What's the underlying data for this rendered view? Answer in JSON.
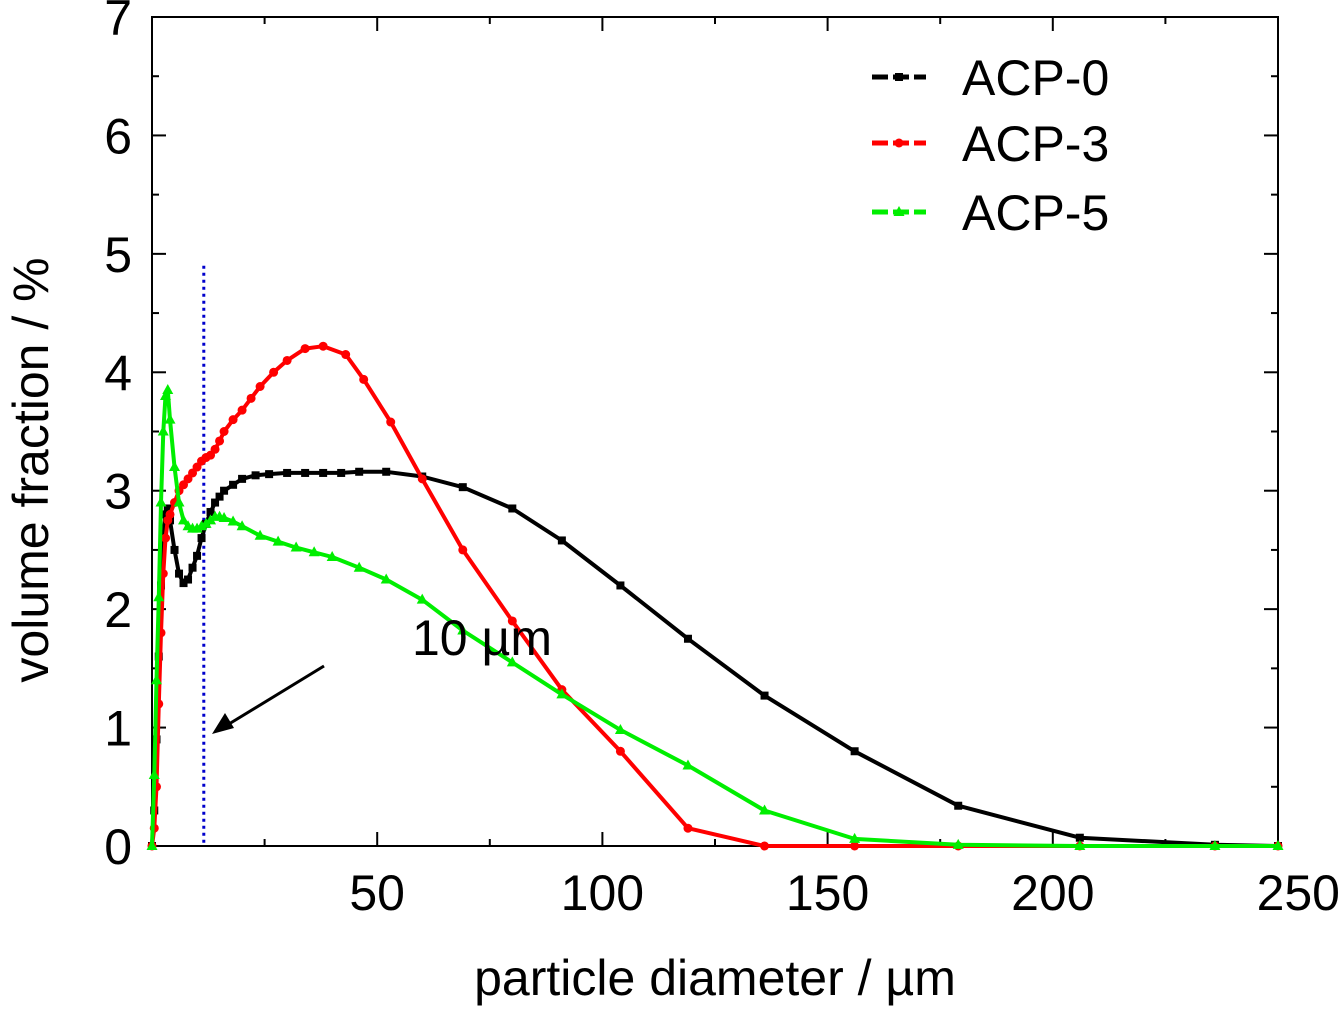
{
  "chart_data": {
    "type": "line",
    "xlabel": "particle diameter / µm",
    "ylabel": "volume fraction / %",
    "xlim": [
      0,
      250
    ],
    "ylim": [
      0,
      7
    ],
    "xticks": [
      50,
      100,
      150,
      200,
      250
    ],
    "yticks": [
      0,
      1,
      2,
      3,
      4,
      5,
      6,
      7
    ],
    "grid": false,
    "legend_position": "top-right",
    "annotation": {
      "text": "10 µm",
      "x_marker": 11.5,
      "marker_top": 4.9,
      "color": "#0000cc"
    },
    "series": [
      {
        "name": "ACP-0",
        "color": "#000000",
        "marker": "square",
        "x": [
          0,
          0.5,
          1,
          1.5,
          2,
          2.5,
          3,
          3.5,
          4,
          5,
          6,
          7,
          8,
          9,
          10,
          11,
          12,
          13,
          14,
          15,
          16,
          18,
          20,
          23,
          26,
          30,
          34,
          38,
          42,
          46,
          52,
          60,
          69,
          80,
          91,
          104,
          119,
          136,
          156,
          179,
          206,
          236,
          250
        ],
        "y": [
          0,
          0.3,
          0.9,
          1.6,
          2.2,
          2.6,
          2.8,
          2.85,
          2.75,
          2.5,
          2.3,
          2.22,
          2.25,
          2.35,
          2.45,
          2.6,
          2.72,
          2.82,
          2.9,
          2.95,
          3.0,
          3.05,
          3.1,
          3.13,
          3.14,
          3.15,
          3.15,
          3.15,
          3.15,
          3.16,
          3.16,
          3.12,
          3.03,
          2.85,
          2.58,
          2.2,
          1.75,
          1.27,
          0.8,
          0.34,
          0.07,
          0.01,
          0
        ]
      },
      {
        "name": "ACP-3",
        "color": "#ff0000",
        "marker": "circle",
        "x": [
          0,
          0.5,
          1,
          1.5,
          2,
          2.5,
          3,
          3.5,
          4,
          5,
          6,
          7,
          8,
          9,
          10,
          11,
          12,
          13,
          14,
          15,
          16,
          18,
          20,
          22,
          24,
          27,
          30,
          34,
          38,
          43,
          47,
          53,
          60,
          69,
          80,
          91,
          104,
          119,
          136,
          156,
          179,
          206,
          236,
          250
        ],
        "y": [
          0,
          0.15,
          0.5,
          1.2,
          1.8,
          2.3,
          2.6,
          2.75,
          2.8,
          2.9,
          3.0,
          3.05,
          3.1,
          3.15,
          3.2,
          3.25,
          3.28,
          3.3,
          3.35,
          3.42,
          3.5,
          3.6,
          3.68,
          3.78,
          3.88,
          4.0,
          4.1,
          4.2,
          4.22,
          4.15,
          3.94,
          3.58,
          3.1,
          2.5,
          1.9,
          1.32,
          0.8,
          0.15,
          0,
          0,
          0,
          0,
          0,
          0
        ]
      },
      {
        "name": "ACP-5",
        "color": "#00ee00",
        "marker": "triangle",
        "x": [
          0,
          0.5,
          1,
          1.5,
          2,
          2.5,
          3,
          3.5,
          4,
          5,
          6,
          7,
          8,
          9,
          10,
          11,
          12,
          13,
          14,
          15,
          16,
          18,
          20,
          24,
          28,
          32,
          36,
          40,
          46,
          52,
          60,
          69,
          80,
          91,
          104,
          119,
          136,
          156,
          179,
          206,
          236,
          250
        ],
        "y": [
          0,
          0.6,
          1.4,
          2.1,
          2.9,
          3.5,
          3.8,
          3.85,
          3.6,
          3.2,
          2.9,
          2.75,
          2.7,
          2.68,
          2.68,
          2.7,
          2.72,
          2.75,
          2.78,
          2.78,
          2.77,
          2.74,
          2.7,
          2.62,
          2.57,
          2.52,
          2.48,
          2.44,
          2.35,
          2.25,
          2.08,
          1.82,
          1.55,
          1.28,
          0.98,
          0.68,
          0.3,
          0.06,
          0.01,
          0,
          0,
          0
        ]
      }
    ]
  }
}
